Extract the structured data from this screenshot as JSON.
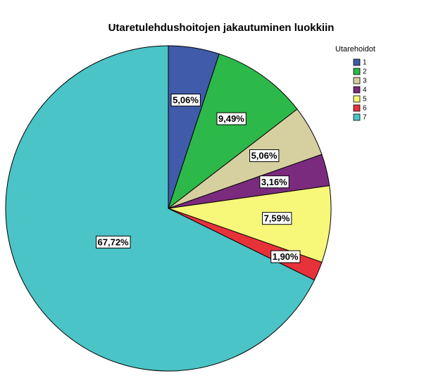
{
  "chart_data": {
    "type": "pie",
    "title": "Utaretulehdushoitojen jakautuminen luokkiin",
    "legend_title": "Utarehoidot",
    "categories": [
      "1",
      "2",
      "3",
      "4",
      "5",
      "6",
      "7"
    ],
    "values": [
      5.06,
      9.49,
      5.06,
      3.16,
      7.59,
      1.9,
      67.72
    ],
    "value_labels": [
      "5,06%",
      "9,49%",
      "5,06%",
      "3,16%",
      "7,59%",
      "1,90%",
      "67,72%"
    ],
    "colors": [
      "#3f5ba9",
      "#2db84a",
      "#d6cfa0",
      "#7b2b7e",
      "#f7f77a",
      "#e8323a",
      "#4ac4c6"
    ],
    "legend": "top-right"
  }
}
